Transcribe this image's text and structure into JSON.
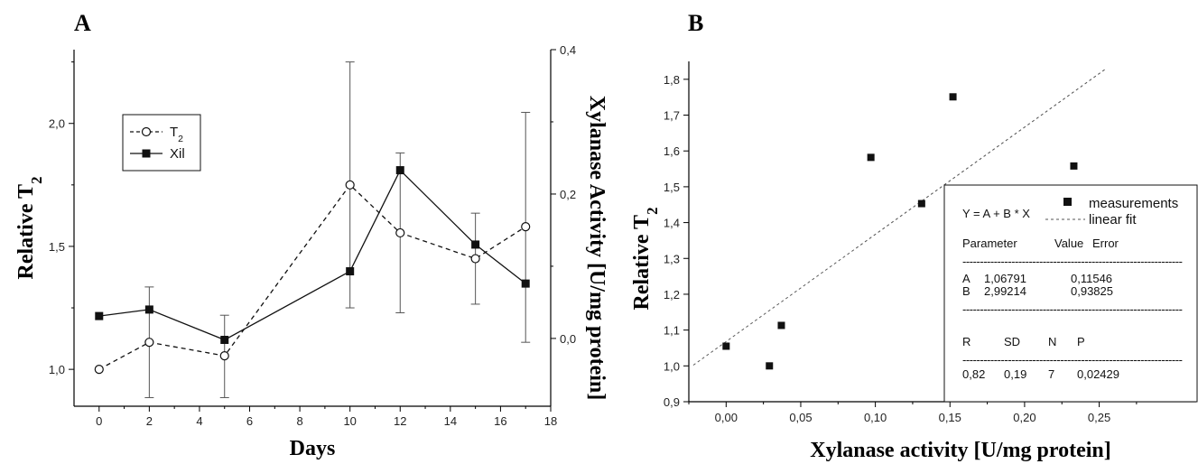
{
  "chart_data": [
    {
      "panel": "A",
      "type": "line",
      "xlabel": "Days",
      "ylabel": "Relative T₂",
      "y2label": "Xylanase Activity [U/mg protein]",
      "xlim": [
        -1,
        18
      ],
      "ylim": [
        0.85,
        2.3
      ],
      "y2lim": [
        -0.0939,
        0.4
      ],
      "x_ticks": [
        "0",
        "2",
        "4",
        "6",
        "8",
        "10",
        "12",
        "14",
        "16",
        "18"
      ],
      "y_ticks": [
        "1,0",
        "1,5",
        "2,0"
      ],
      "y2_ticks": [
        "0,0",
        "0,2",
        "0,4"
      ],
      "legend_position": "top-left",
      "series": [
        {
          "name": "T₂",
          "axis": "left",
          "style": "dashed",
          "marker": "open-circle",
          "x": [
            0,
            2,
            5,
            10,
            12,
            15,
            17
          ],
          "values": [
            1.0,
            1.11,
            1.055,
            1.75,
            1.555,
            1.45,
            1.58
          ],
          "err_low": [
            1.0,
            0.885,
            0.885,
            1.25,
            1.23,
            1.265,
            1.11
          ],
          "err_high": [
            1.0,
            1.335,
            1.22,
            2.25,
            1.88,
            1.635,
            2.045
          ]
        },
        {
          "name": "Xil",
          "axis": "right",
          "style": "solid",
          "marker": "filled-square",
          "x": [
            0,
            2,
            5,
            10,
            12,
            15,
            17
          ],
          "values": [
            0.031,
            0.04,
            -0.002,
            0.093,
            0.233,
            0.13,
            0.076
          ]
        }
      ]
    },
    {
      "panel": "B",
      "type": "scatter",
      "xlabel": "Xylanase activity [U/mg protein]",
      "ylabel": "Relative T₂",
      "xlim": [
        -0.025,
        0.315
      ],
      "ylim": [
        0.9,
        1.85
      ],
      "x_ticks": [
        "0,00",
        "0,05",
        "0,10",
        "0,15",
        "0,20",
        "0,25"
      ],
      "y_ticks": [
        "0,9",
        "1,0",
        "1,1",
        "1,2",
        "1,3",
        "1,4",
        "1,5",
        "1,6",
        "1,7",
        "1,8"
      ],
      "points": {
        "name": "measurements",
        "x": [
          0.0,
          0.029,
          0.037,
          0.097,
          0.131,
          0.152,
          0.233
        ],
        "y": [
          1.055,
          1.0,
          1.113,
          1.582,
          1.453,
          1.751,
          1.558
        ]
      },
      "fit": {
        "name": "linear fit",
        "A": 1.06791,
        "B": 2.99214,
        "x_range": [
          -0.022,
          0.254
        ]
      },
      "stats": {
        "equation": "Y = A + B * X",
        "param_header": [
          "Parameter",
          "Value",
          "Error"
        ],
        "params": [
          [
            "A",
            "1,06791",
            "0,11546"
          ],
          [
            "B",
            "2,99214",
            "0,93825"
          ]
        ],
        "r_header": [
          "R",
          "SD",
          "N",
          "P"
        ],
        "r_values": [
          "0,82",
          "0,19",
          "7",
          "0,02429"
        ],
        "separator": "---------------------------------------------------------------"
      }
    }
  ]
}
